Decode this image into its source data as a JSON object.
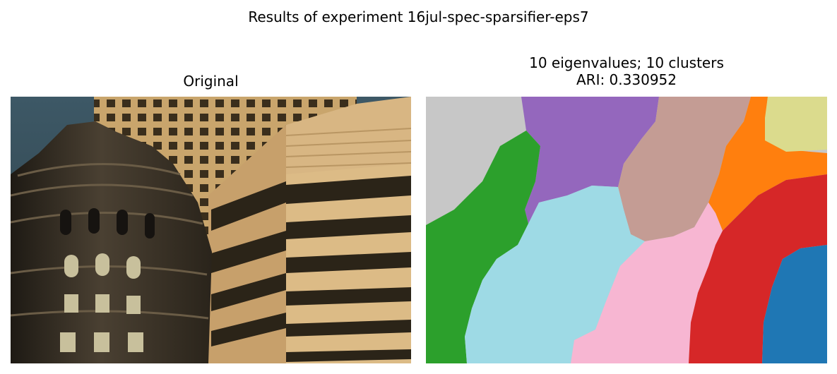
{
  "chart_data": [
    {
      "type": "image",
      "title": "Original",
      "content": "photograph"
    },
    {
      "type": "heatmap",
      "title_line1": "10 eigenvalues; 10 clusters",
      "title_line2": "ARI: 0.330952",
      "n_eigenvalues": 10,
      "n_clusters": 10,
      "ari": 0.330952,
      "segment_colors": [
        "#c7c7c7",
        "#9467bd",
        "#c49c94",
        "#ff7f0e",
        "#dbdb8d",
        "#2ca02c",
        "#9edae5",
        "#f7b6d2",
        "#d62728",
        "#1f77b4"
      ]
    }
  ],
  "figure": {
    "suptitle": "Results of experiment 16jul-spec-sparsifier-eps7"
  }
}
